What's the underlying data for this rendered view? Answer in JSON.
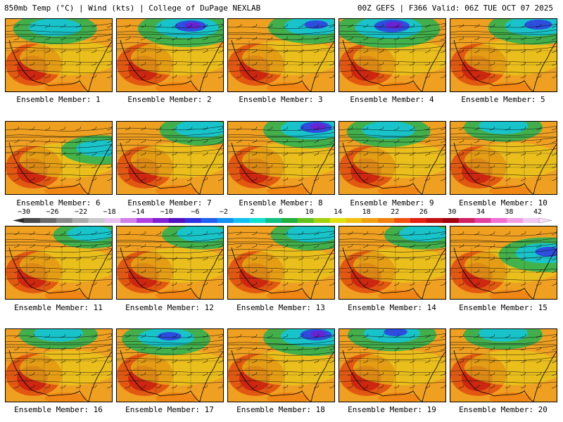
{
  "header": {
    "left_text": "850mb Temp (°C) | Wind (kts) | College of DuPage NEXLAB",
    "right_text": "00Z GEFS | F366 Valid: 06Z TUE OCT 07 2025"
  },
  "members": [
    {
      "label": "Ensemble Member: 1",
      "cold": "north-central",
      "coldness": 0.5
    },
    {
      "label": "Ensemble Member: 2",
      "cold": "north-central-east",
      "coldness": 0.8
    },
    {
      "label": "Ensemble Member: 3",
      "cold": "northeast",
      "coldness": 0.6
    },
    {
      "label": "Ensemble Member: 4",
      "cold": "north-central",
      "coldness": 0.9
    },
    {
      "label": "Ensemble Member: 5",
      "cold": "northeast",
      "coldness": 0.7
    },
    {
      "label": "Ensemble Member: 6",
      "cold": "east",
      "coldness": 0.4
    },
    {
      "label": "Ensemble Member: 7",
      "cold": "northeast",
      "coldness": 0.5
    },
    {
      "label": "Ensemble Member: 8",
      "cold": "northeast",
      "coldness": 0.8
    },
    {
      "label": "Ensemble Member: 9",
      "cold": "north-central",
      "coldness": 0.5
    },
    {
      "label": "Ensemble Member: 10",
      "cold": "north",
      "coldness": 0.4
    },
    {
      "label": "Ensemble Member: 11",
      "cold": "northeast",
      "coldness": 0.3
    },
    {
      "label": "Ensemble Member: 12",
      "cold": "northeast",
      "coldness": 0.4
    },
    {
      "label": "Ensemble Member: 13",
      "cold": "northeast",
      "coldness": 0.5
    },
    {
      "label": "Ensemble Member: 14",
      "cold": "northeast",
      "coldness": 0.4
    },
    {
      "label": "Ensemble Member: 15",
      "cold": "east",
      "coldness": 0.7
    },
    {
      "label": "Ensemble Member: 16",
      "cold": "north",
      "coldness": 0.4
    },
    {
      "label": "Ensemble Member: 17",
      "cold": "north-central",
      "coldness": 0.6
    },
    {
      "label": "Ensemble Member: 18",
      "cold": "northeast",
      "coldness": 0.8
    },
    {
      "label": "Ensemble Member: 19",
      "cold": "north",
      "coldness": 0.6
    },
    {
      "label": "Ensemble Member: 20",
      "cold": "north",
      "coldness": 0.4
    }
  ],
  "colorbar": {
    "ticks": [
      "−30",
      "−26",
      "−22",
      "−18",
      "−14",
      "−10",
      "−6",
      "−2",
      "2",
      "6",
      "10",
      "14",
      "18",
      "22",
      "26",
      "30",
      "34",
      "38",
      "42"
    ],
    "colors": [
      "#4a4a4a",
      "#6a6a6a",
      "#8a8a8a",
      "#aaaaaa",
      "#c8c8c8",
      "#e8c0f0",
      "#d080e8",
      "#b040e0",
      "#8020d0",
      "#5010c0",
      "#3030e0",
      "#2060f0",
      "#1090f0",
      "#10c0f0",
      "#10e0d0",
      "#10c080",
      "#20b040",
      "#60c020",
      "#a0d010",
      "#e0e010",
      "#f0c010",
      "#f0a010",
      "#f08010",
      "#f05010",
      "#e02010",
      "#c01010",
      "#a00010",
      "#d02060",
      "#e040a0",
      "#f070d0",
      "#f0a0e0",
      "#f0c8f0"
    ]
  }
}
